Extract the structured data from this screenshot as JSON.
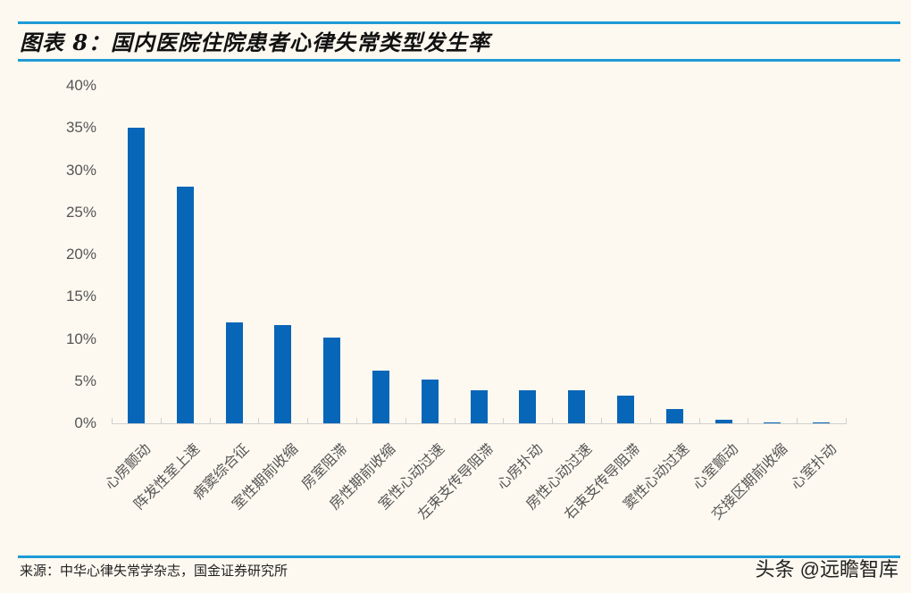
{
  "header": {
    "title": "图表 8：国内医院住院患者心律失常类型发生率"
  },
  "footer": {
    "source": "来源：中华心律失常学杂志，国金证券研究所",
    "watermark": "头条 @远瞻智库"
  },
  "colors": {
    "bar": "#0766b8",
    "rule": "#1e9ad6",
    "background": "#fdf9f0"
  },
  "y_ticks": [
    "0%",
    "5%",
    "10%",
    "15%",
    "20%",
    "25%",
    "30%",
    "35%",
    "40%"
  ],
  "chart_data": {
    "type": "bar",
    "title": "国内医院住院患者心律失常类型发生率",
    "xlabel": "",
    "ylabel": "",
    "ylim": [
      0,
      40
    ],
    "y_unit": "%",
    "grid": false,
    "legend": "none",
    "categories": [
      "心房颤动",
      "阵发性室上速",
      "病窦综合征",
      "室性期前收缩",
      "房室阻滞",
      "房性期前收缩",
      "室性心动过速",
      "左束支传导阻滞",
      "心房扑动",
      "房性心动过速",
      "右束支传导阻滞",
      "窦性心动过速",
      "心室颤动",
      "交接区期前收缩",
      "心室扑动"
    ],
    "values": [
      35.0,
      28.0,
      12.0,
      11.6,
      10.2,
      6.2,
      5.2,
      3.9,
      3.9,
      3.9,
      3.3,
      1.7,
      0.4,
      0.15,
      0.1
    ]
  }
}
